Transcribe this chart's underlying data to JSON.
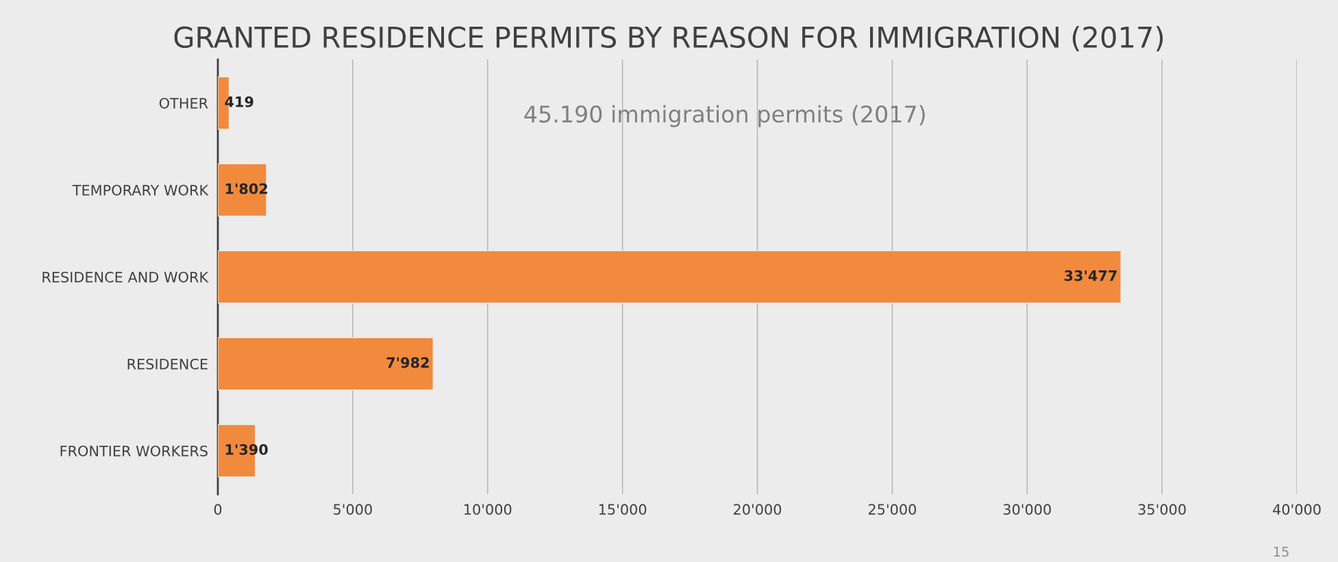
{
  "chart_data": {
    "type": "bar",
    "orientation": "horizontal",
    "title": "GRANTED RESIDENCE PERMITS BY REASON FOR IMMIGRATION (2017)",
    "categories": [
      "OTHER",
      "TEMPORARY WORK",
      "RESIDENCE AND WORK",
      "RESIDENCE",
      "FRONTIER WORKERS"
    ],
    "values": [
      419,
      1802,
      33477,
      7982,
      1390
    ],
    "value_labels": [
      "419",
      "1'802",
      "33'477",
      "7'982",
      "1'390"
    ],
    "color": "#f28a3e",
    "xlim": [
      0,
      40000
    ],
    "xticks": [
      0,
      {
        "value": 5000,
        "label": "5'000"
      },
      {
        "value": 10000,
        "label": "10'000"
      },
      {
        "value": 15000,
        "label": "15'000"
      },
      {
        "value": 20000,
        "label": "20'000"
      },
      {
        "value": 25000,
        "label": "25'000"
      },
      {
        "value": 30000,
        "label": "30'000"
      },
      {
        "value": 35000,
        "label": "35'000"
      },
      {
        "value": 40000,
        "label": "40'000"
      }
    ],
    "grid": "x",
    "annotations": [
      "45.190 immigration permits (2017)",
      "15"
    ]
  }
}
